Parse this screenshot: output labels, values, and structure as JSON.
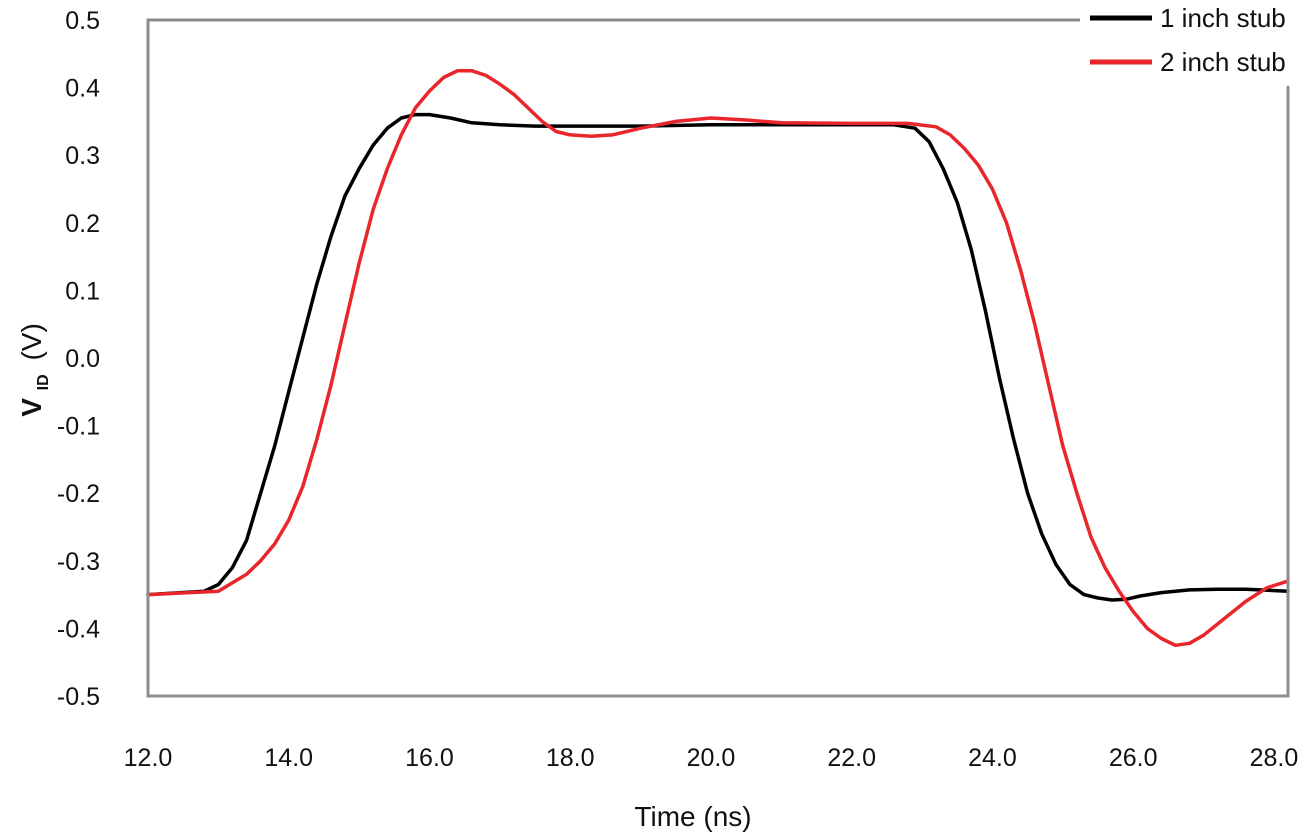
{
  "chart_data": {
    "type": "line",
    "title": "",
    "xlabel": "Time (ns)",
    "ylabel_main": "V",
    "ylabel_sub": "ID",
    "ylabel_unit": "(V)",
    "xlim": [
      12.0,
      28.2
    ],
    "ylim": [
      -0.5,
      0.5
    ],
    "x_ticks": [
      12,
      14,
      16,
      18,
      20,
      22,
      24,
      26,
      28
    ],
    "x_tick_labels": [
      "12.0",
      "14.0",
      "16.0",
      "18.0",
      "20.0",
      "22.0",
      "24.0",
      "26.0",
      "28.0"
    ],
    "y_ticks": [
      0.5,
      0.4,
      0.3,
      0.2,
      0.1,
      0.0,
      -0.1,
      -0.2,
      -0.3,
      -0.4,
      -0.5
    ],
    "y_tick_labels": [
      "0.5",
      "0.4",
      "0.3",
      "0.2",
      "0.1",
      "0.0",
      "-0.1",
      "-0.2",
      "-0.3",
      "-0.4",
      "-0.5"
    ],
    "grid": false,
    "legend_position": "top-right",
    "series": [
      {
        "name": "1 inch stub",
        "color": "#000000",
        "x": [
          12.0,
          12.8,
          13.0,
          13.2,
          13.4,
          13.6,
          13.8,
          14.0,
          14.2,
          14.4,
          14.6,
          14.8,
          15.0,
          15.2,
          15.4,
          15.6,
          15.8,
          16.0,
          16.3,
          16.6,
          17.0,
          17.5,
          18.0,
          19.0,
          20.0,
          21.0,
          22.0,
          22.6,
          22.9,
          23.1,
          23.3,
          23.5,
          23.7,
          23.9,
          24.1,
          24.3,
          24.5,
          24.7,
          24.9,
          25.1,
          25.3,
          25.5,
          25.7,
          25.9,
          26.1,
          26.4,
          26.8,
          27.2,
          27.6,
          28.2
        ],
        "y": [
          -0.35,
          -0.345,
          -0.335,
          -0.31,
          -0.27,
          -0.2,
          -0.13,
          -0.05,
          0.03,
          0.11,
          0.18,
          0.24,
          0.28,
          0.315,
          0.34,
          0.355,
          0.36,
          0.36,
          0.355,
          0.348,
          0.345,
          0.343,
          0.343,
          0.343,
          0.345,
          0.345,
          0.345,
          0.345,
          0.34,
          0.32,
          0.28,
          0.23,
          0.16,
          0.07,
          -0.03,
          -0.12,
          -0.2,
          -0.26,
          -0.305,
          -0.335,
          -0.35,
          -0.355,
          -0.358,
          -0.357,
          -0.352,
          -0.347,
          -0.343,
          -0.342,
          -0.342,
          -0.345
        ]
      },
      {
        "name": "2 inch stub",
        "color": "#e8262b",
        "x": [
          12.0,
          13.0,
          13.4,
          13.6,
          13.8,
          14.0,
          14.2,
          14.4,
          14.6,
          14.8,
          15.0,
          15.2,
          15.4,
          15.6,
          15.8,
          16.0,
          16.2,
          16.4,
          16.6,
          16.8,
          17.0,
          17.2,
          17.4,
          17.6,
          17.8,
          18.0,
          18.3,
          18.6,
          19.0,
          19.5,
          20.0,
          20.5,
          21.0,
          22.0,
          22.8,
          23.2,
          23.4,
          23.6,
          23.8,
          24.0,
          24.2,
          24.4,
          24.6,
          24.8,
          25.0,
          25.2,
          25.4,
          25.6,
          25.8,
          26.0,
          26.2,
          26.4,
          26.6,
          26.8,
          27.0,
          27.3,
          27.6,
          27.9,
          28.2
        ],
        "y": [
          -0.35,
          -0.345,
          -0.32,
          -0.3,
          -0.275,
          -0.24,
          -0.19,
          -0.12,
          -0.04,
          0.05,
          0.14,
          0.22,
          0.28,
          0.33,
          0.37,
          0.395,
          0.415,
          0.425,
          0.425,
          0.418,
          0.405,
          0.39,
          0.37,
          0.35,
          0.335,
          0.33,
          0.328,
          0.33,
          0.34,
          0.35,
          0.355,
          0.352,
          0.348,
          0.347,
          0.347,
          0.342,
          0.33,
          0.31,
          0.285,
          0.25,
          0.2,
          0.13,
          0.05,
          -0.04,
          -0.13,
          -0.2,
          -0.265,
          -0.31,
          -0.345,
          -0.375,
          -0.4,
          -0.415,
          -0.425,
          -0.422,
          -0.41,
          -0.385,
          -0.36,
          -0.34,
          -0.33
        ]
      }
    ]
  }
}
